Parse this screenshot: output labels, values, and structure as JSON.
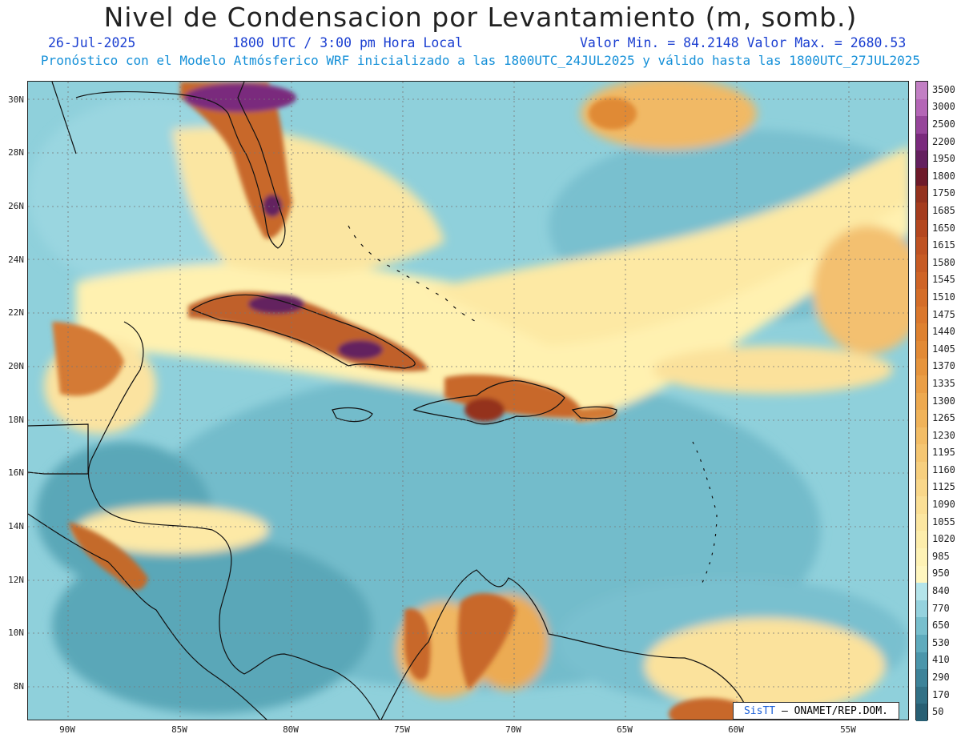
{
  "header": {
    "title": "Nivel de Condensacion por Levantamiento (m, somb.)",
    "date": "26-Jul-2025",
    "time": "1800 UTC / 3:00 pm Hora Local",
    "min_max": "Valor Min. = 84.2148  Valor Max. = 2680.53",
    "subtitle": "Pronóstico con el Modelo Atmósferico WRF inicializado a las 1800UTC_24JUL2025 y válido hasta las  1800UTC_27JUL2025"
  },
  "axes": {
    "lat_labels": [
      "30N",
      "28N",
      "26N",
      "24N",
      "22N",
      "20N",
      "18N",
      "16N",
      "14N",
      "12N",
      "10N",
      "8N"
    ],
    "lon_labels": [
      "90W",
      "85W",
      "80W",
      "75W",
      "70W",
      "65W",
      "60W",
      "55W"
    ]
  },
  "legend": {
    "levels": [
      "3500",
      "3000",
      "2500",
      "2200",
      "1950",
      "1800",
      "1750",
      "1685",
      "1650",
      "1615",
      "1580",
      "1545",
      "1510",
      "1475",
      "1440",
      "1405",
      "1370",
      "1335",
      "1300",
      "1265",
      "1230",
      "1195",
      "1160",
      "1125",
      "1090",
      "1055",
      "1020",
      "985",
      "950",
      "840",
      "770",
      "650",
      "530",
      "410",
      "290",
      "170",
      "50"
    ],
    "colors": [
      "#c27fc4",
      "#b466b6",
      "#96459a",
      "#7a2a7d",
      "#64205f",
      "#6e1a2a",
      "#94321e",
      "#a53c1e",
      "#b4471f",
      "#bf5222",
      "#c75b24",
      "#cf6426",
      "#d46d28",
      "#da772c",
      "#de812f",
      "#e28a35",
      "#e6943c",
      "#ea9e45",
      "#eda94f",
      "#f0b35a",
      "#f3bd66",
      "#f5c672",
      "#f7cf7e",
      "#f9d78a",
      "#fbdf95",
      "#fce6a0",
      "#fdedab",
      "#fef2b5",
      "#fff6bf",
      "#b4e4ea",
      "#95d2de",
      "#78bfcd",
      "#5fabbd",
      "#4b96ab",
      "#3d8399",
      "#327186",
      "#285f73"
    ]
  },
  "credit": {
    "brand": "SisTT",
    "org": "– ONAMET/REP.DOM."
  }
}
